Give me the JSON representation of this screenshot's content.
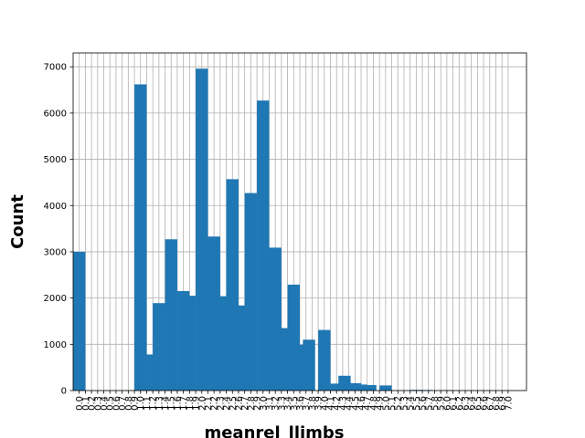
{
  "chart_data": {
    "type": "bar",
    "xlabel": "meanrel_llimbs",
    "ylabel": "Count",
    "ylim": [
      0,
      7300
    ],
    "xlim": [
      -0.1,
      7.3
    ],
    "grid": true,
    "bar_color": "#1f77b4",
    "x_ticks": [
      "0.0",
      "0.1",
      "0.2",
      "0.3",
      "0.4",
      "0.5",
      "0.6",
      "0.7",
      "0.8",
      "0.9",
      "1.0",
      "1.1",
      "1.2",
      "1.3",
      "1.4",
      "1.5",
      "1.6",
      "1.7",
      "1.8",
      "1.9",
      "2.0",
      "2.1",
      "2.2",
      "2.3",
      "2.4",
      "2.5",
      "2.6",
      "2.7",
      "2.8",
      "2.9",
      "3.0",
      "3.1",
      "3.2",
      "3.3",
      "3.4",
      "3.5",
      "3.6",
      "3.7",
      "3.8",
      "3.9",
      "4.0",
      "4.1",
      "4.2",
      "4.3",
      "4.4",
      "4.5",
      "4.6",
      "4.7",
      "4.8",
      "4.9",
      "5.0",
      "5.1",
      "5.2",
      "5.3",
      "5.4",
      "5.5",
      "5.6",
      "5.7",
      "5.8",
      "5.9",
      "6.0",
      "6.1",
      "6.2",
      "6.3",
      "6.4",
      "6.5",
      "6.6",
      "6.7",
      "6.8",
      "6.9",
      "7.0"
    ],
    "y_ticks": [
      "0",
      "1000",
      "2000",
      "3000",
      "4000",
      "5000",
      "6000",
      "7000"
    ],
    "bar_width": 0.2,
    "bars": [
      {
        "x": 0.0,
        "value": 3000
      },
      {
        "x": 1.0,
        "value": 6620
      },
      {
        "x": 1.2,
        "value": 780
      },
      {
        "x": 1.3,
        "value": 1890
      },
      {
        "x": 1.5,
        "value": 3270
      },
      {
        "x": 1.7,
        "value": 2150
      },
      {
        "x": 1.8,
        "value": 2050
      },
      {
        "x": 2.0,
        "value": 6960
      },
      {
        "x": 2.2,
        "value": 3330
      },
      {
        "x": 2.33,
        "value": 2040
      },
      {
        "x": 2.5,
        "value": 4570
      },
      {
        "x": 2.67,
        "value": 1840
      },
      {
        "x": 2.8,
        "value": 4270
      },
      {
        "x": 3.0,
        "value": 6270
      },
      {
        "x": 3.2,
        "value": 3090
      },
      {
        "x": 3.33,
        "value": 1350
      },
      {
        "x": 3.5,
        "value": 2290
      },
      {
        "x": 3.6,
        "value": 990
      },
      {
        "x": 3.75,
        "value": 1100
      },
      {
        "x": 4.0,
        "value": 1310
      },
      {
        "x": 4.2,
        "value": 150
      },
      {
        "x": 4.33,
        "value": 320
      },
      {
        "x": 4.5,
        "value": 160
      },
      {
        "x": 4.6,
        "value": 130
      },
      {
        "x": 4.75,
        "value": 120
      },
      {
        "x": 5.0,
        "value": 110
      },
      {
        "x": 5.5,
        "value": 15
      },
      {
        "x": 5.67,
        "value": 12
      },
      {
        "x": 6.0,
        "value": 10
      }
    ]
  }
}
